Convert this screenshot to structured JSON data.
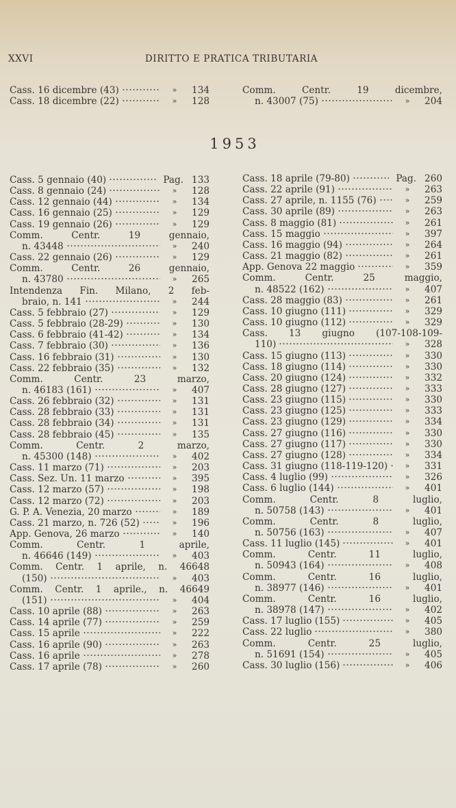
{
  "header": {
    "page_number": "XXVI",
    "title": "DIRITTO E PRATICA TRIBUTARIA"
  },
  "top_left": [
    {
      "lines": [
        "Cass. 16 dicembre (43)"
      ],
      "mark": "»",
      "page": "134"
    },
    {
      "lines": [
        "Cass. 18 dicembre (22)"
      ],
      "mark": "»",
      "page": "128"
    }
  ],
  "top_right": [
    {
      "lines": [
        "Comm. Centr. 19 dicembre,",
        "n. 43007 (75)"
      ],
      "mark": "»",
      "page": "204"
    }
  ],
  "year": "1953",
  "left": [
    {
      "lines": [
        "Cass. 5 gennaio (40)"
      ],
      "mark": "Pag.",
      "page": "133"
    },
    {
      "lines": [
        "Cass. 8 gennaio (24)"
      ],
      "mark": "»",
      "page": "128"
    },
    {
      "lines": [
        "Cass. 12 gennaio (44)"
      ],
      "mark": "»",
      "page": "134"
    },
    {
      "lines": [
        "Cass. 16 gennaio (25)"
      ],
      "mark": "»",
      "page": "129"
    },
    {
      "lines": [
        "Cass. 19 gennaio (26)"
      ],
      "mark": "»",
      "page": "129"
    },
    {
      "lines": [
        "Comm. Centr. 19 gennaio,",
        "n. 43448"
      ],
      "mark": "»",
      "page": "240"
    },
    {
      "lines": [
        "Cass. 22 gennaio (26)"
      ],
      "mark": "»",
      "page": "129"
    },
    {
      "lines": [
        "Comm. Centr. 26 gennaio,",
        "n. 43780"
      ],
      "mark": "»",
      "page": "265"
    },
    {
      "lines": [
        "Intendenza Fin. Milano, 2 feb-",
        "braio, n. 141"
      ],
      "mark": "»",
      "page": "244"
    },
    {
      "lines": [
        "Cass. 5 febbraio (27)"
      ],
      "mark": "»",
      "page": "129"
    },
    {
      "lines": [
        "Cass. 5 febbraio (28-29)"
      ],
      "mark": "»",
      "page": "130"
    },
    {
      "lines": [
        "Cass. 6 febbraio (41-42)"
      ],
      "mark": "»",
      "page": "134"
    },
    {
      "lines": [
        "Cass. 7 febbraio (30)"
      ],
      "mark": "»",
      "page": "136"
    },
    {
      "lines": [
        "Cass. 16 febbraio (31)"
      ],
      "mark": "»",
      "page": "130"
    },
    {
      "lines": [
        "Cass. 22 febbraio (35)"
      ],
      "mark": "»",
      "page": "132"
    },
    {
      "lines": [
        "Comm. Centr. 23 marzo,",
        "n. 46183 (161)"
      ],
      "mark": "»",
      "page": "407"
    },
    {
      "lines": [
        "Cass. 26 febbraio (32)"
      ],
      "mark": "»",
      "page": "131"
    },
    {
      "lines": [
        "Cass. 28 febbraio (33)"
      ],
      "mark": "»",
      "page": "131"
    },
    {
      "lines": [
        "Cass. 28 febbraio (34)"
      ],
      "mark": "»",
      "page": "131"
    },
    {
      "lines": [
        "Cass. 28 febbraio (45)"
      ],
      "mark": "»",
      "page": "135"
    },
    {
      "lines": [
        "Comm. Centr. 2 marzo,",
        "n. 45300 (148)"
      ],
      "mark": "»",
      "page": "402"
    },
    {
      "lines": [
        "Cass. 11 marzo (71)"
      ],
      "mark": "»",
      "page": "203"
    },
    {
      "lines": [
        "Cass. Sez. Un. 11 marzo"
      ],
      "mark": "»",
      "page": "395"
    },
    {
      "lines": [
        "Cass. 12 marzo (57)"
      ],
      "mark": "»",
      "page": "198"
    },
    {
      "lines": [
        "Cass. 12 marzo (72)"
      ],
      "mark": "»",
      "page": "203"
    },
    {
      "lines": [
        "G. P. A. Venezia, 20 marzo"
      ],
      "mark": "»",
      "page": "189"
    },
    {
      "lines": [
        "Cass. 21 marzo, n. 726 (52)"
      ],
      "mark": "»",
      "page": "196"
    },
    {
      "lines": [
        "App. Genova, 26 marzo"
      ],
      "mark": "»",
      "page": "140"
    },
    {
      "lines": [
        "Comm. Centr. 1 aprile,",
        "n. 46646 (149)"
      ],
      "mark": "»",
      "page": "403"
    },
    {
      "lines": [
        "Comm. Centr. 1 aprile, n. 46648",
        "(150)"
      ],
      "mark": "»",
      "page": "403"
    },
    {
      "lines": [
        "Comm. Centr. 1 aprile., n. 46649",
        "(151)"
      ],
      "mark": "»",
      "page": "404"
    },
    {
      "lines": [
        "Cass. 10 aprile (88)"
      ],
      "mark": "»",
      "page": "263"
    },
    {
      "lines": [
        "Cass. 14 aprile (77)"
      ],
      "mark": "»",
      "page": "259"
    },
    {
      "lines": [
        "Cass. 15 aprile"
      ],
      "mark": "»",
      "page": "222"
    },
    {
      "lines": [
        "Cass. 16 aprile (90)"
      ],
      "mark": "»",
      "page": "263"
    },
    {
      "lines": [
        "Cass. 16 aprile"
      ],
      "mark": "»",
      "page": "278"
    },
    {
      "lines": [
        "Cass. 17 aprile (78)"
      ],
      "mark": "»",
      "page": "260"
    }
  ],
  "right": [
    {
      "lines": [
        "Cass. 18 aprile (79-80)"
      ],
      "mark": "Pag.",
      "page": "260"
    },
    {
      "lines": [
        "Cass. 22 aprile (91)"
      ],
      "mark": "»",
      "page": "263"
    },
    {
      "lines": [
        "Cass. 27 aprile, n. 1155 (76)"
      ],
      "mark": "»",
      "page": "259"
    },
    {
      "lines": [
        "Cass. 30 aprile (89)"
      ],
      "mark": "»",
      "page": "263"
    },
    {
      "lines": [
        "Cass. 8 maggio (81)"
      ],
      "mark": "»",
      "page": "261"
    },
    {
      "lines": [
        "Cass. 15 maggio"
      ],
      "mark": "»",
      "page": "397"
    },
    {
      "lines": [
        "Cass. 16 maggio (94)"
      ],
      "mark": "»",
      "page": "264"
    },
    {
      "lines": [
        "Cass. 21 maggio (82)"
      ],
      "mark": "»",
      "page": "261"
    },
    {
      "lines": [
        "App. Genova 22 maggio"
      ],
      "mark": "»",
      "page": "359"
    },
    {
      "lines": [
        "Comm. Centr. 25 maggio,",
        "n. 48522 (162)"
      ],
      "mark": "»",
      "page": "407"
    },
    {
      "lines": [
        "Cass. 28 maggio (83)"
      ],
      "mark": "»",
      "page": "261"
    },
    {
      "lines": [
        "Cass. 10 giugno (111)"
      ],
      "mark": "»",
      "page": "329"
    },
    {
      "lines": [
        "Cass. 10 giugno (112)"
      ],
      "mark": "»",
      "page": "329"
    },
    {
      "lines": [
        "Cass. 13 giugno (107-108-109-",
        "110)"
      ],
      "mark": "»",
      "page": "328"
    },
    {
      "lines": [
        "Cass. 15 giugno (113)"
      ],
      "mark": "»",
      "page": "330"
    },
    {
      "lines": [
        "Cass. 18 giugno (114)"
      ],
      "mark": "»",
      "page": "330"
    },
    {
      "lines": [
        "Cass. 20 giugno (124)"
      ],
      "mark": "»",
      "page": "332"
    },
    {
      "lines": [
        "Cass. 28 giugno (127)"
      ],
      "mark": "»",
      "page": "333"
    },
    {
      "lines": [
        "Cass. 23 giugno (115)"
      ],
      "mark": "»",
      "page": "330"
    },
    {
      "lines": [
        "Cass. 23 giugno (125)"
      ],
      "mark": "»",
      "page": "333"
    },
    {
      "lines": [
        "Cass. 23 giugno (129)"
      ],
      "mark": "»",
      "page": "334"
    },
    {
      "lines": [
        "Cass. 27 giugno (116)"
      ],
      "mark": "»",
      "page": "330"
    },
    {
      "lines": [
        "Cass. 27 giugno (117)"
      ],
      "mark": "»",
      "page": "330"
    },
    {
      "lines": [
        "Cass. 27 giugno (128)"
      ],
      "mark": "»",
      "page": "334"
    },
    {
      "lines": [
        "Cass. 31 giugno (118-119-120)"
      ],
      "mark": "»",
      "page": "331"
    },
    {
      "lines": [
        "Cass. 4 luglio (99)"
      ],
      "mark": "»",
      "page": "326"
    },
    {
      "lines": [
        "Cass. 6 luglio (144)"
      ],
      "mark": "»",
      "page": "401"
    },
    {
      "lines": [
        "Comm. Centr. 8 luglio,",
        "n. 50758 (143)"
      ],
      "mark": "»",
      "page": "401"
    },
    {
      "lines": [
        "Comm. Centr. 8 luglio,",
        "n. 50756 (163)"
      ],
      "mark": "»",
      "page": "407"
    },
    {
      "lines": [
        "Cass. 11 luglio (145)"
      ],
      "mark": "»",
      "page": "401"
    },
    {
      "lines": [
        "Comm. Centr. 11 luglio,",
        "n. 50943 (164)"
      ],
      "mark": "»",
      "page": "408"
    },
    {
      "lines": [
        "Comm. Centr. 16 luglio,",
        "n. 38977 (146)"
      ],
      "mark": "»",
      "page": "401"
    },
    {
      "lines": [
        "Comm. Centr. 16 luglio,",
        "n. 38978 (147)"
      ],
      "mark": "»",
      "page": "402"
    },
    {
      "lines": [
        "Cass. 17 luglio (155)"
      ],
      "mark": "»",
      "page": "405"
    },
    {
      "lines": [
        "Cass. 22 luglio"
      ],
      "mark": "»",
      "page": "380"
    },
    {
      "lines": [
        "Comm. Centr. 25 luglio,",
        "n. 51691 (154)"
      ],
      "mark": "»",
      "page": "405"
    },
    {
      "lines": [
        "Cass. 30 luglio (156)"
      ],
      "mark": "»",
      "page": "406"
    }
  ]
}
